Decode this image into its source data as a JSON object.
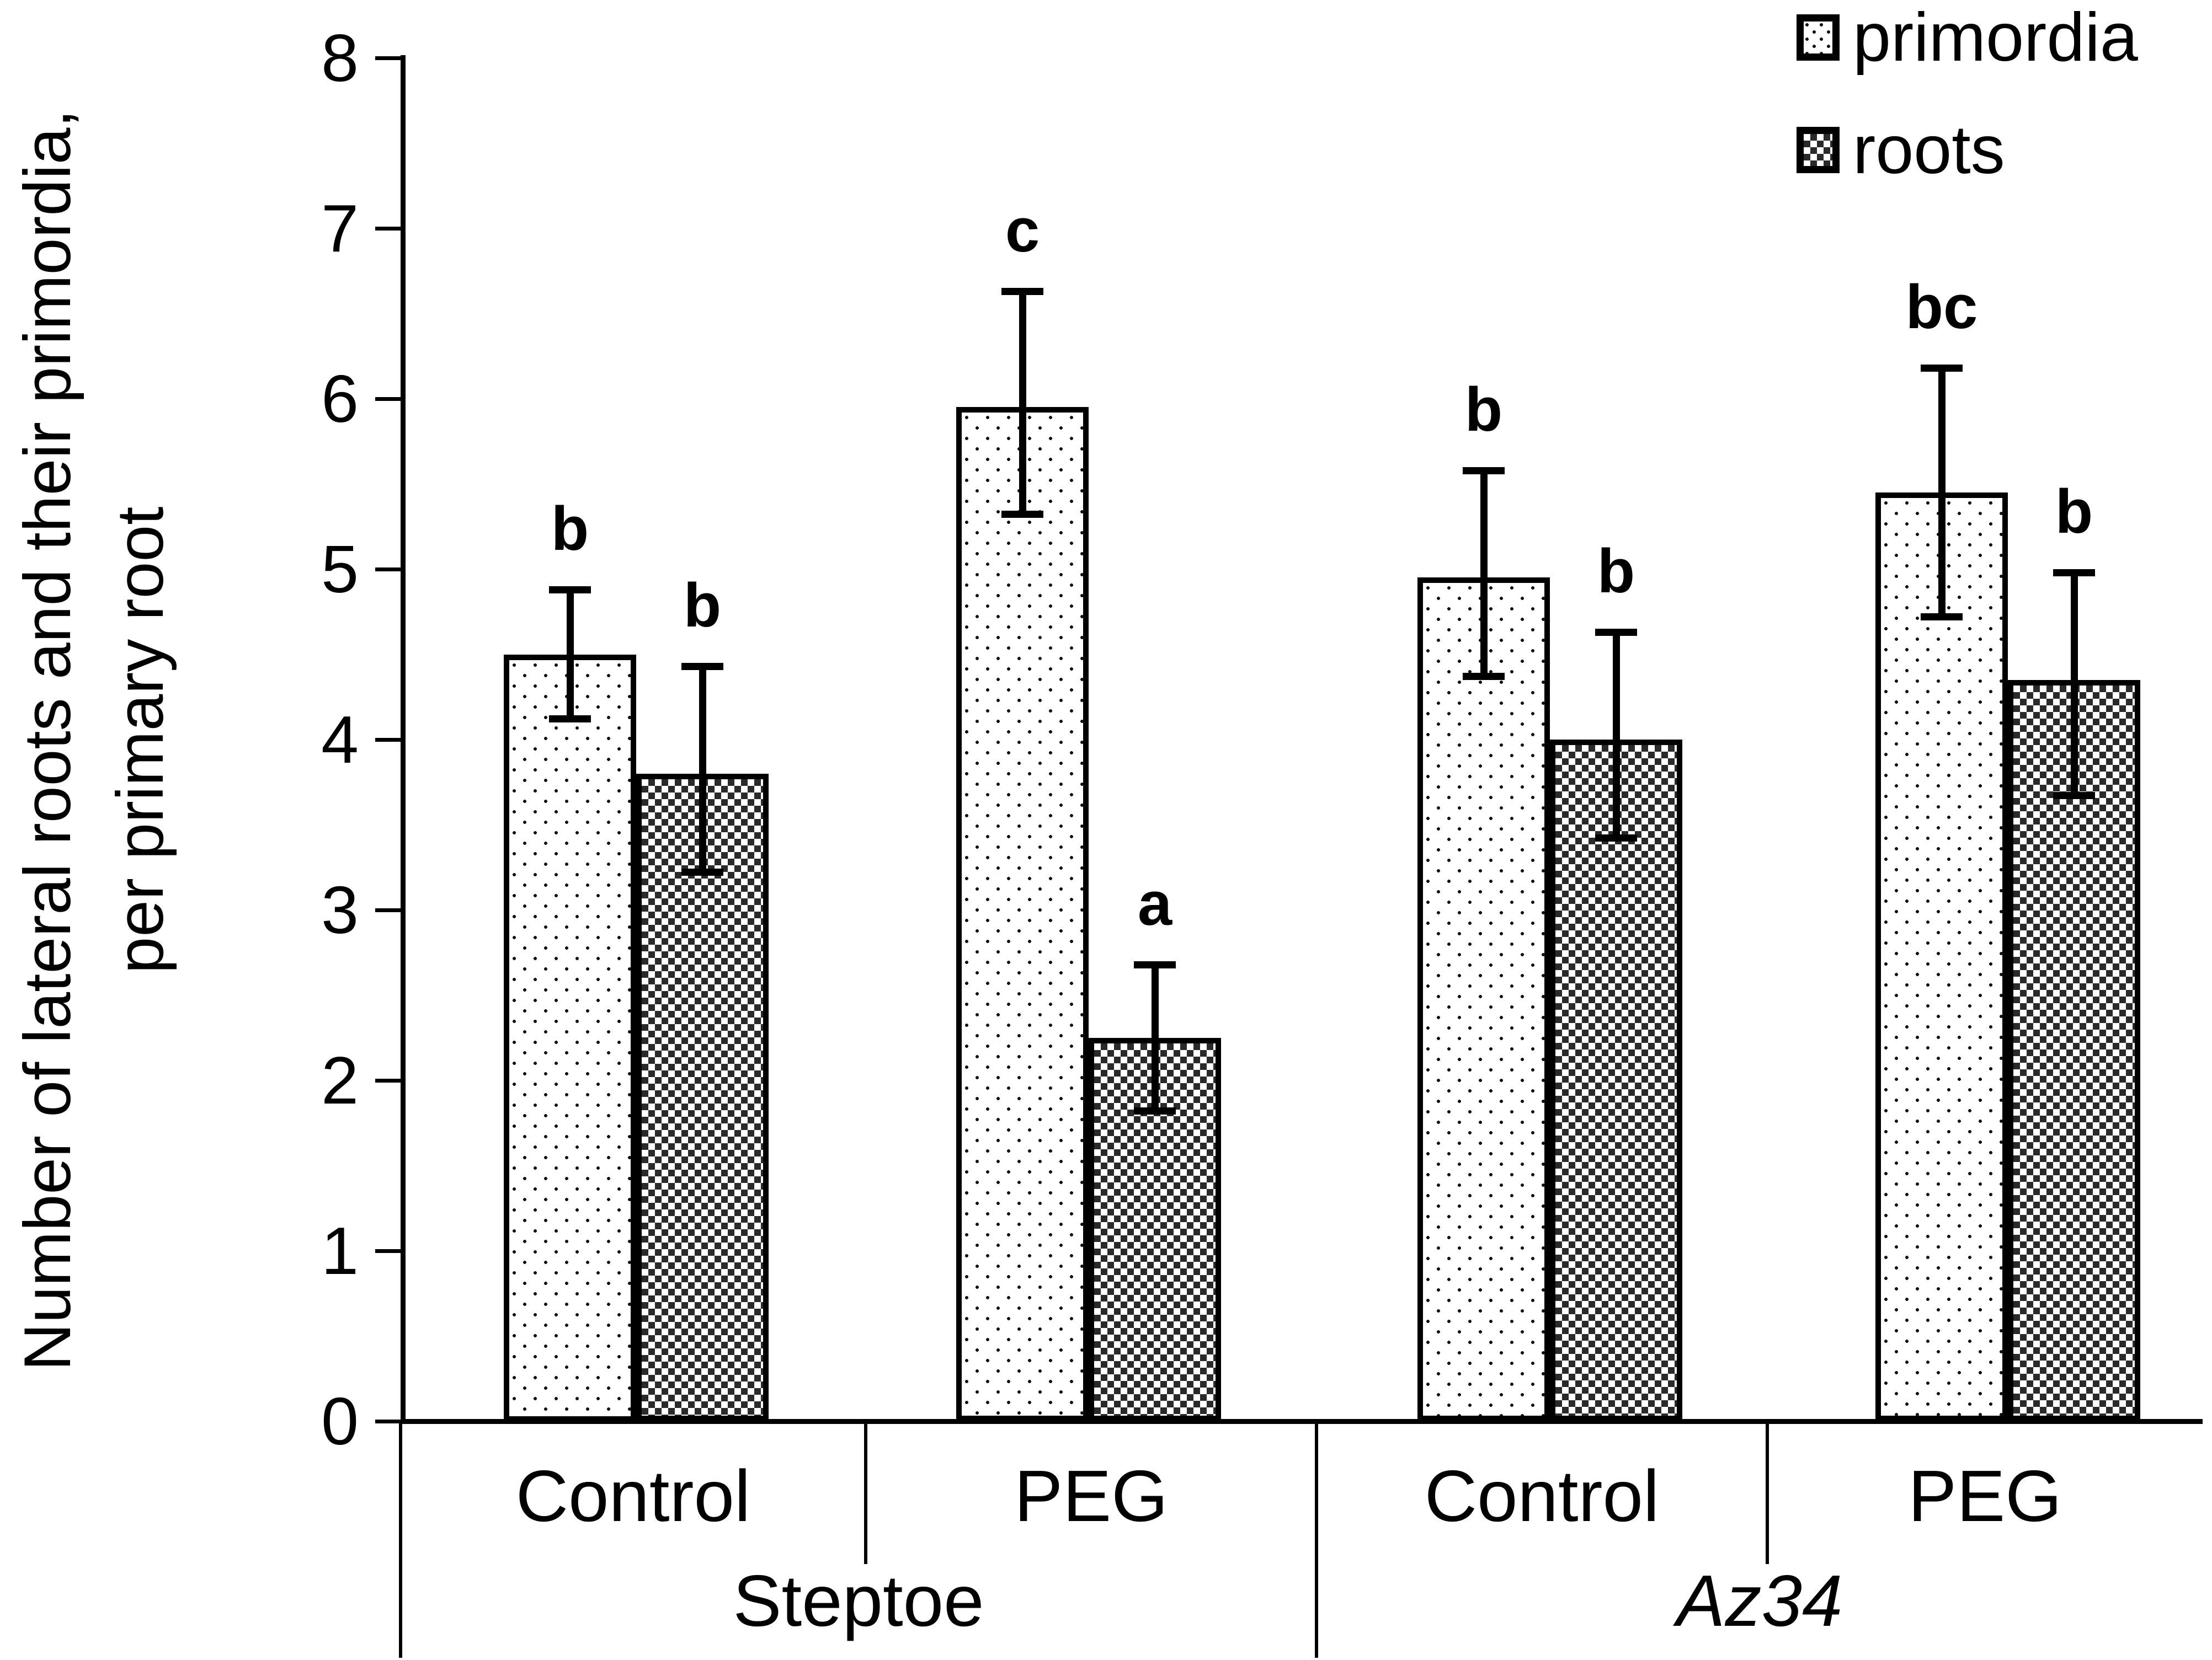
{
  "chart_data": {
    "type": "bar",
    "title": "",
    "ylabel": "Number of lateral roots and their primordia, per primary root",
    "ylabel_line1": "Number of lateral roots and their primordia,",
    "ylabel_line2": "per primary root",
    "xlabel": "",
    "ylim": [
      0,
      8
    ],
    "yticks": [
      0,
      1,
      2,
      3,
      4,
      5,
      6,
      7,
      8
    ],
    "grid": false,
    "legend_position": "top-right",
    "categories": [
      "Steptoe Control",
      "Steptoe PEG",
      "Az34 Control",
      "Az34 PEG"
    ],
    "groups": [
      {
        "cultivar": "Steptoe",
        "italic": false,
        "conditions": [
          "Control",
          "PEG"
        ]
      },
      {
        "cultivar": "Az34",
        "italic": true,
        "conditions": [
          "Control",
          "PEG"
        ]
      }
    ],
    "series": [
      {
        "name": "primordia",
        "pattern": "dots",
        "values": [
          4.5,
          5.95,
          4.95,
          5.45
        ],
        "err_low": [
          4.1,
          5.3,
          4.35,
          4.7
        ],
        "err_high": [
          4.9,
          6.65,
          5.6,
          6.2
        ],
        "letters": [
          "b",
          "c",
          "b",
          "bc"
        ]
      },
      {
        "name": "roots",
        "pattern": "checker",
        "values": [
          3.8,
          2.25,
          4.0,
          4.35
        ],
        "err_low": [
          3.2,
          1.8,
          3.4,
          3.65
        ],
        "err_high": [
          4.45,
          2.7,
          4.65,
          5.0
        ],
        "letters": [
          "b",
          "a",
          "b",
          "b"
        ]
      }
    ],
    "colors": {
      "ink": "#000000",
      "pattern_dark": "#2a2a2a",
      "background": "#ffffff"
    }
  }
}
